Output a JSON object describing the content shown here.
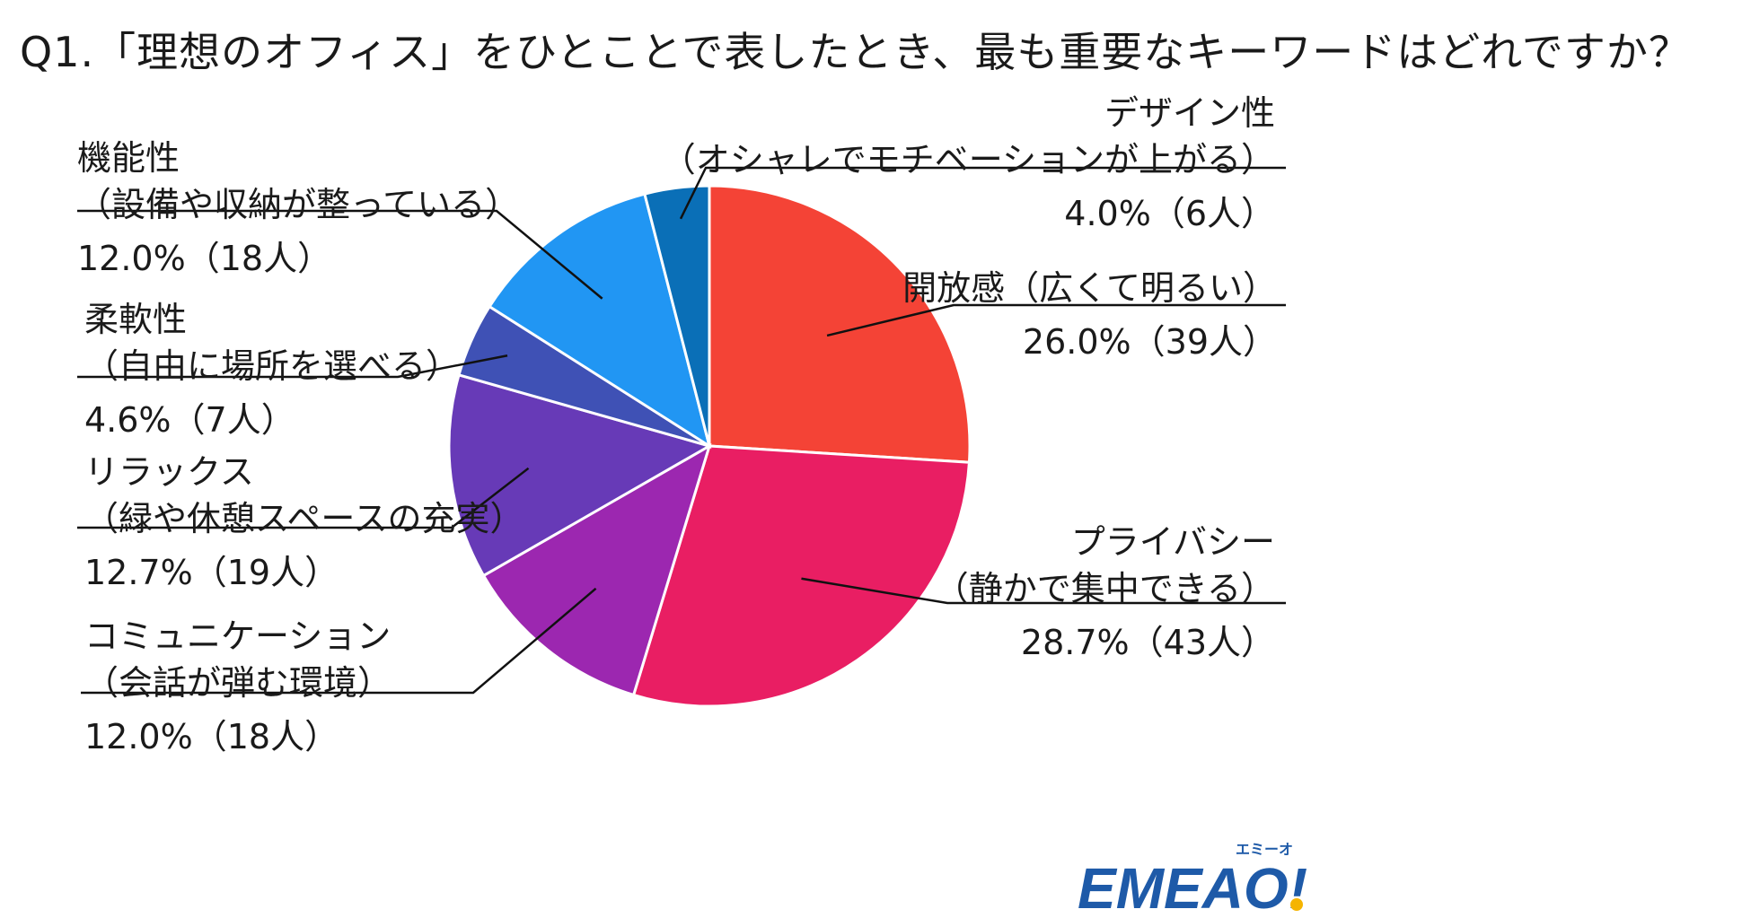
{
  "title": "Q1.「理想のオフィス」をひとことで表したとき、最も重要なキーワードはどれですか？",
  "chart_data": {
    "type": "pie",
    "start": "12 o'clock",
    "direction": "clockwise",
    "slices": [
      {
        "name": "開放感（広くて明るい）",
        "line1": "開放感（広くて明るい）",
        "line2": "",
        "value": 26.0,
        "count": 39,
        "value_label": "26.0%（39人）",
        "color": "#f44336"
      },
      {
        "name": "プライバシー（静かで集中できる）",
        "line1": "プライバシー",
        "line2": "（静かで集中できる）",
        "value": 28.7,
        "count": 43,
        "value_label": "28.7%（43人）",
        "color": "#e91e63"
      },
      {
        "name": "コミュニケーション（会話が弾む環境）",
        "line1": "コミュニケーション",
        "line2": "（会話が弾む環境）",
        "value": 12.0,
        "count": 18,
        "value_label": "12.0%（18人）",
        "color": "#9c27b0"
      },
      {
        "name": "リラックス（緑や休憩スペースの充実）",
        "line1": "リラックス",
        "line2": "（緑や休憩スペースの充実）",
        "value": 12.7,
        "count": 19,
        "value_label": "12.7%（19人）",
        "color": "#673ab7"
      },
      {
        "name": "柔軟性（自由に場所を選べる）",
        "line1": "柔軟性",
        "line2": "（自由に場所を選べる）",
        "value": 4.6,
        "count": 7,
        "value_label": "4.6%（7人）",
        "color": "#3f51b5"
      },
      {
        "name": "機能性（設備や収納が整っている）",
        "line1": "機能性",
        "line2": "（設備や収納が整っている）",
        "value": 12.0,
        "count": 18,
        "value_label": "12.0%（18人）",
        "color": "#2196f3"
      },
      {
        "name": "デザイン性（オシャレでモチベーションが上がる）",
        "line1": "デザイン性",
        "line2": "（オシャレでモチベーションが上がる）",
        "value": 4.0,
        "count": 6,
        "value_label": "4.0%（6人）",
        "color": "#0a6fb7"
      }
    ]
  },
  "logo": {
    "text": "EMEAO!",
    "ruby": "エミーオ",
    "colors": {
      "letters": "#1e5aa8",
      "accent": "#f5b400"
    }
  }
}
